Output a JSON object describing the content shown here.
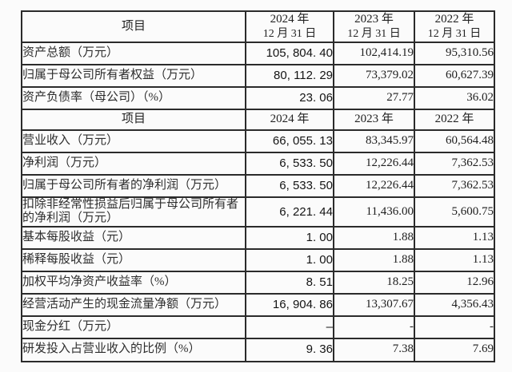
{
  "table": {
    "header_row1": {
      "item_label": "项目",
      "col_2024_line1": "2024 年",
      "col_2024_line2": "12 月 31 日",
      "col_2023_line1": "2023 年",
      "col_2023_line2": "12 月 31 日",
      "col_2022_line1": "2022 年",
      "col_2022_line2": "12 月 31 日"
    },
    "section1": [
      {
        "label": "资产总额（万元）",
        "y2024": "105, 804. 40",
        "y2023": "102,414.19",
        "y2022": "95,310.56"
      },
      {
        "label": "归属于母公司所有者权益（万元）",
        "y2024": "80, 112. 29",
        "y2023": "73,379.02",
        "y2022": "60,627.39"
      },
      {
        "label": "资产负债率（母公司）（%）",
        "y2024": "23. 06",
        "y2023": "27.77",
        "y2022": "36.02"
      }
    ],
    "header_row2": {
      "item_label": "项目",
      "col_2024": "2024 年",
      "col_2023": "2023 年",
      "col_2022": "2022 年"
    },
    "section2": [
      {
        "label": "营业收入（万元）",
        "y2024": "66, 055. 13",
        "y2023": "83,345.97",
        "y2022": "60,564.48"
      },
      {
        "label": "净利润（万元）",
        "y2024": "6, 533. 50",
        "y2023": "12,226.44",
        "y2022": "7,362.53"
      },
      {
        "label": "归属于母公司所有者的净利润（万元）",
        "y2024": "6, 533. 50",
        "y2023": "12,226.44",
        "y2022": "7,362.53"
      },
      {
        "label": "扣除非经常性损益后归属于母公司所有者的净利润（万元）",
        "y2024": "6, 221. 44",
        "y2023": "11,436.00",
        "y2022": "5,600.75"
      },
      {
        "label": "基本每股收益（元）",
        "y2024": "1. 00",
        "y2023": "1.88",
        "y2022": "1.13"
      },
      {
        "label": "稀释每股收益（元）",
        "y2024": "1. 00",
        "y2023": "1.88",
        "y2022": "1.13"
      },
      {
        "label": "加权平均净资产收益率（%）",
        "y2024": "8. 51",
        "y2023": "18.25",
        "y2022": "12.96"
      },
      {
        "label": "经营活动产生的现金流量净额（万元）",
        "y2024": "16, 904. 86",
        "y2023": "13,307.67",
        "y2022": "4,356.43"
      },
      {
        "label": "现金分红（万元）",
        "y2024": "–",
        "y2023": "-",
        "y2022": "-"
      },
      {
        "label": "研发投入占营业收入的比例（%）",
        "y2024": "9. 36",
        "y2023": "7.38",
        "y2022": "7.69"
      }
    ]
  }
}
